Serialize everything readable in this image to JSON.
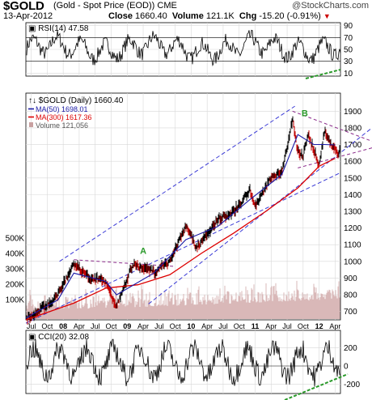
{
  "header": {
    "symbol": "$GOLD",
    "description": "(Gold - Spot Price (EOD))",
    "exchange": "CME",
    "brand": "@StockCharts.com",
    "date": "13-Apr-2012",
    "close_label": "Close",
    "close_value": "1660.40",
    "volume_label": "Volume",
    "volume_value": "121.1K",
    "chg_label": "Chg",
    "chg_value": "-15.20 (-0.91%)"
  },
  "rsi": {
    "label": "RSI(14) 47.58",
    "ticks": [
      "90",
      "70",
      "50",
      "30",
      "10"
    ],
    "tick_values": [
      90,
      70,
      50,
      30,
      10
    ]
  },
  "main": {
    "label": "$GOLD (Daily) 1660.40",
    "legend": [
      {
        "text": "MA(50) 1698.01",
        "color": "#1a1aa6"
      },
      {
        "text": "MA(300) 1617.36",
        "color": "#dd0000"
      },
      {
        "text": "Volume 121,056",
        "color": "#c8a0a0"
      }
    ],
    "price_ticks": [
      1900,
      1800,
      1700,
      1600,
      1500,
      1400,
      1300,
      1200,
      1100,
      1000,
      900,
      800,
      700
    ],
    "volume_ticks": [
      "500K",
      "400K",
      "300K",
      "200K",
      "100K"
    ],
    "volume_tick_values": [
      500,
      400,
      300,
      200,
      100
    ],
    "annotation_a": "A",
    "annotation_b": "B"
  },
  "xaxis": {
    "labels": [
      "Jul",
      "Oct",
      "08",
      "Apr",
      "Jul",
      "Oct",
      "09",
      "Apr",
      "Jul",
      "Oct",
      "10",
      "Apr",
      "Jul",
      "Oct",
      "11",
      "Apr",
      "Jul",
      "Oct",
      "12",
      "Apr"
    ],
    "bold": [
      "08",
      "09",
      "10",
      "11",
      "12"
    ]
  },
  "cci": {
    "label": "CCI(20) 32.08",
    "ticks": [
      "200",
      "0",
      "-200"
    ],
    "tick_values": [
      200,
      0,
      -200
    ]
  },
  "chart_data": {
    "type": "line",
    "title": "$GOLD (Daily)",
    "x_range": [
      "2007-06",
      "2012-04-13"
    ],
    "y_range": [
      650,
      1950
    ],
    "series": [
      {
        "name": "$GOLD",
        "x": [
          "2007-06",
          "2007-09",
          "2007-12",
          "2008-03",
          "2008-06",
          "2008-09",
          "2008-11",
          "2009-02",
          "2009-06",
          "2009-09",
          "2009-12",
          "2010-02",
          "2010-06",
          "2010-09",
          "2010-12",
          "2011-01",
          "2011-04",
          "2011-06",
          "2011-08",
          "2011-09",
          "2011-10",
          "2011-11",
          "2012-01",
          "2012-02",
          "2012-04"
        ],
        "y": [
          655,
          720,
          800,
          985,
          900,
          880,
          730,
          980,
          940,
          1000,
          1215,
          1080,
          1250,
          1300,
          1420,
          1330,
          1500,
          1530,
          1850,
          1660,
          1640,
          1760,
          1570,
          1780,
          1660
        ]
      },
      {
        "name": "MA(50)",
        "x": [
          "2007-06",
          "2007-12",
          "2008-03",
          "2008-09",
          "2008-11",
          "2009-06",
          "2009-12",
          "2010-06",
          "2010-12",
          "2011-06",
          "2011-09",
          "2011-12",
          "2012-02",
          "2012-04"
        ],
        "y": [
          660,
          770,
          930,
          880,
          800,
          930,
          1130,
          1210,
          1370,
          1520,
          1760,
          1700,
          1700,
          1698
        ]
      },
      {
        "name": "MA(300)",
        "x": [
          "2007-06",
          "2008-03",
          "2008-09",
          "2009-03",
          "2009-09",
          "2010-03",
          "2010-09",
          "2011-03",
          "2011-09",
          "2012-01",
          "2012-04"
        ],
        "y": [
          650,
          750,
          840,
          860,
          920,
          1050,
          1170,
          1300,
          1440,
          1570,
          1617
        ]
      }
    ],
    "ylim": [
      650,
      1950
    ]
  }
}
